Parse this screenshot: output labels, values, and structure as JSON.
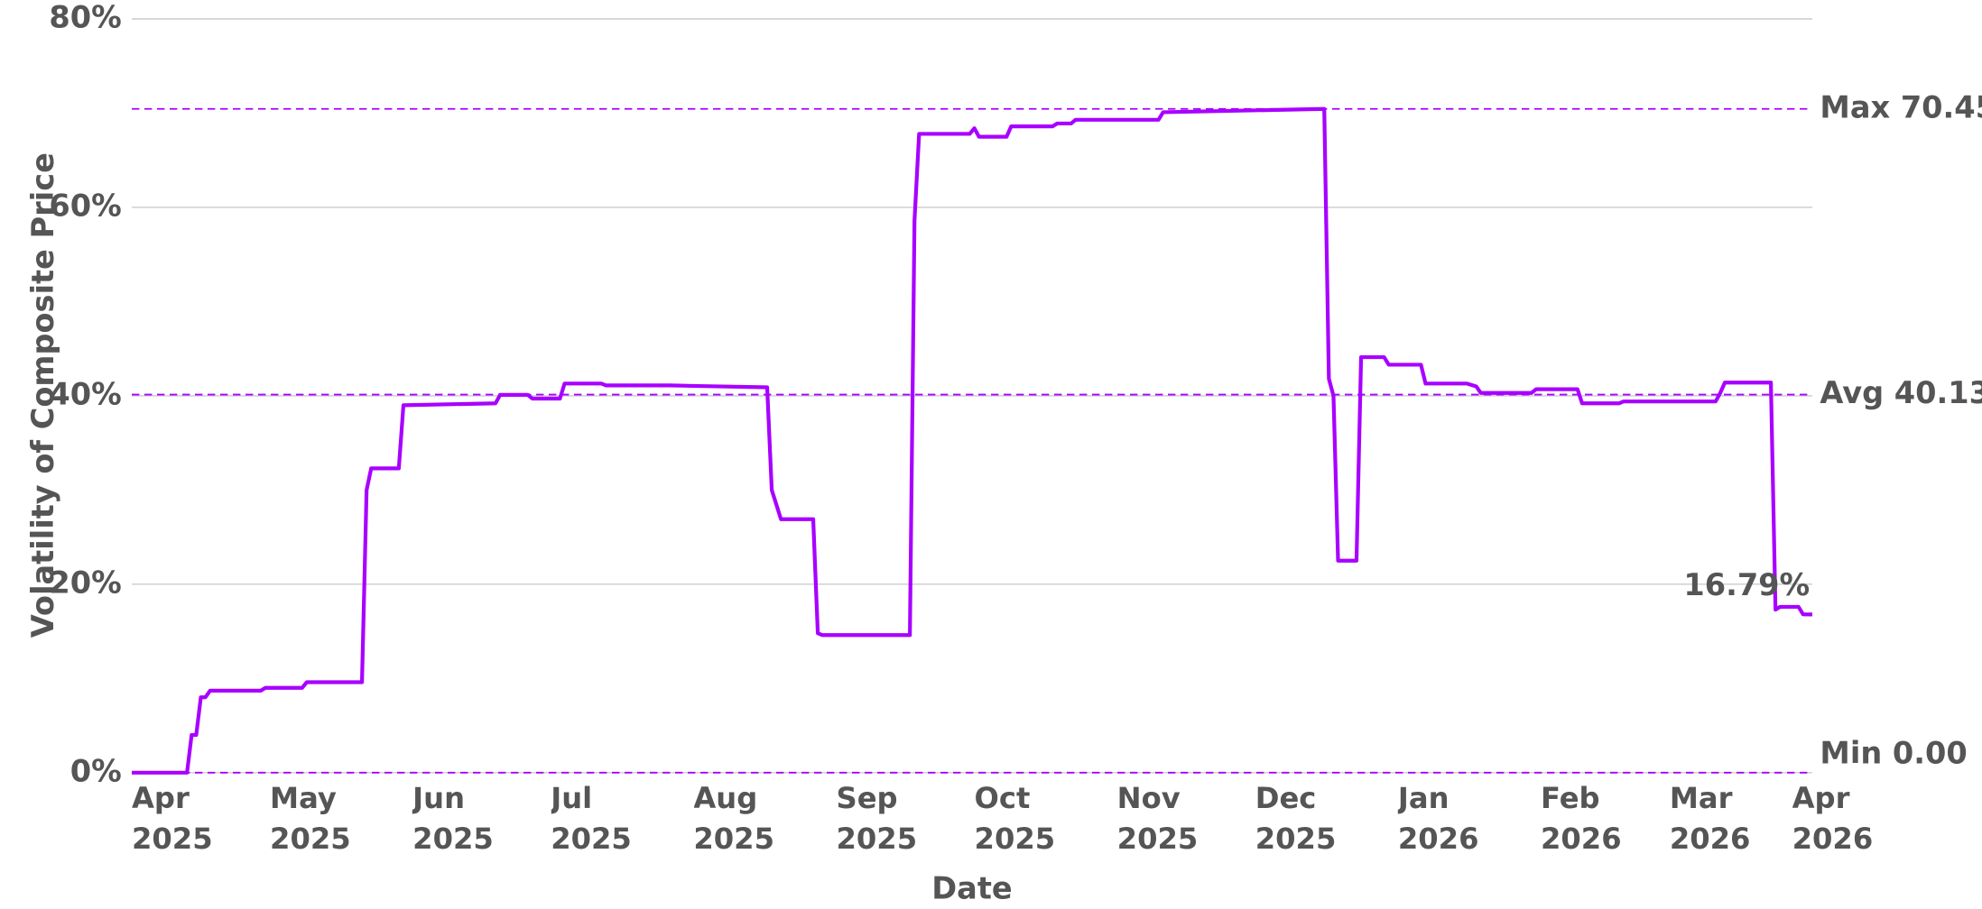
{
  "chart_data": {
    "type": "line",
    "x_label": "Date",
    "y_label": "Volatility of Composite Price",
    "xlim": [
      "2025-04-01",
      "2026-04-01"
    ],
    "xticks": [
      {
        "value": "2025-04-01",
        "label": "Apr 2025"
      },
      {
        "value": "2025-05-01",
        "label": "May 2025"
      },
      {
        "value": "2025-06-01",
        "label": "Jun 2025"
      },
      {
        "value": "2025-07-01",
        "label": "Jul 2025"
      },
      {
        "value": "2025-08-01",
        "label": "Aug 2025"
      },
      {
        "value": "2025-09-01",
        "label": "Sep 2025"
      },
      {
        "value": "2025-10-01",
        "label": "Oct 2025"
      },
      {
        "value": "2025-11-01",
        "label": "Nov 2025"
      },
      {
        "value": "2025-12-01",
        "label": "Dec 2025"
      },
      {
        "value": "2026-01-01",
        "label": "Jan 2026"
      },
      {
        "value": "2026-02-01",
        "label": "Feb 2026"
      },
      {
        "value": "2026-03-01",
        "label": "Mar 2026"
      },
      {
        "value": "2026-04-01",
        "label": "Apr 2026"
      }
    ],
    "ylim": [
      0,
      80
    ],
    "yticks": [
      {
        "value": 0,
        "label": "0%"
      },
      {
        "value": 20,
        "label": "20%"
      },
      {
        "value": 40,
        "label": "40%"
      },
      {
        "value": 60,
        "label": "60%"
      },
      {
        "value": 80,
        "label": "80%"
      }
    ],
    "grid": true,
    "reference_lines": [
      {
        "value": 70.45,
        "label": "Max 70.45"
      },
      {
        "value": 40.13,
        "label": "Avg 40.13"
      },
      {
        "value": 0,
        "label": "Min 0.00"
      }
    ],
    "color": "#a800ff",
    "x": [
      "2025-04-01",
      "2025-04-13",
      "2025-04-14",
      "2025-04-15",
      "2025-04-16",
      "2025-04-17",
      "2025-04-18",
      "2025-04-29",
      "2025-04-30",
      "2025-05-08",
      "2025-05-09",
      "2025-05-21",
      "2025-05-22",
      "2025-05-23",
      "2025-05-29",
      "2025-05-30",
      "2025-06-19",
      "2025-06-20",
      "2025-06-26",
      "2025-06-27",
      "2025-07-03",
      "2025-07-04",
      "2025-07-12",
      "2025-07-13",
      "2025-07-27",
      "2025-08-06",
      "2025-08-17",
      "2025-08-18",
      "2025-08-20",
      "2025-08-27",
      "2025-08-28",
      "2025-08-29",
      "2025-09-17",
      "2025-09-18",
      "2025-09-19",
      "2025-09-30",
      "2025-10-01",
      "2025-10-02",
      "2025-10-08",
      "2025-10-09",
      "2025-10-18",
      "2025-10-19",
      "2025-10-22",
      "2025-10-23",
      "2025-11-10",
      "2025-11-11",
      "2025-12-16",
      "2025-12-17",
      "2025-12-18",
      "2025-12-19",
      "2025-12-23",
      "2025-12-24",
      "2025-12-29",
      "2025-12-30",
      "2026-01-06",
      "2026-01-07",
      "2026-01-16",
      "2026-01-18",
      "2026-01-19",
      "2026-01-30",
      "2026-01-31",
      "2026-02-09",
      "2026-02-10",
      "2026-02-18",
      "2026-02-19",
      "2026-03-11",
      "2026-03-12",
      "2026-03-13",
      "2026-03-23",
      "2026-03-24",
      "2026-03-25",
      "2026-03-29",
      "2026-03-30",
      "2026-04-01"
    ],
    "values": [
      0,
      0,
      4.0,
      4.0,
      8.0,
      8.0,
      8.7,
      8.7,
      9.0,
      9.0,
      9.6,
      9.6,
      30.0,
      32.3,
      32.3,
      39.0,
      39.2,
      40.1,
      40.1,
      39.7,
      39.7,
      41.3,
      41.3,
      41.1,
      41.1,
      41.0,
      40.9,
      30.0,
      26.9,
      26.9,
      14.8,
      14.6,
      14.6,
      58.6,
      67.8,
      67.8,
      68.4,
      67.5,
      67.5,
      68.6,
      68.6,
      68.9,
      68.9,
      69.3,
      69.3,
      70.1,
      70.45,
      41.8,
      40.0,
      22.5,
      22.5,
      44.1,
      44.1,
      43.3,
      43.3,
      41.3,
      41.3,
      41.0,
      40.3,
      40.3,
      40.7,
      40.7,
      39.2,
      39.2,
      39.4,
      39.4,
      40.3,
      41.4,
      41.4,
      17.3,
      17.6,
      17.6,
      16.8,
      16.79
    ],
    "end_label": "16.79%"
  }
}
